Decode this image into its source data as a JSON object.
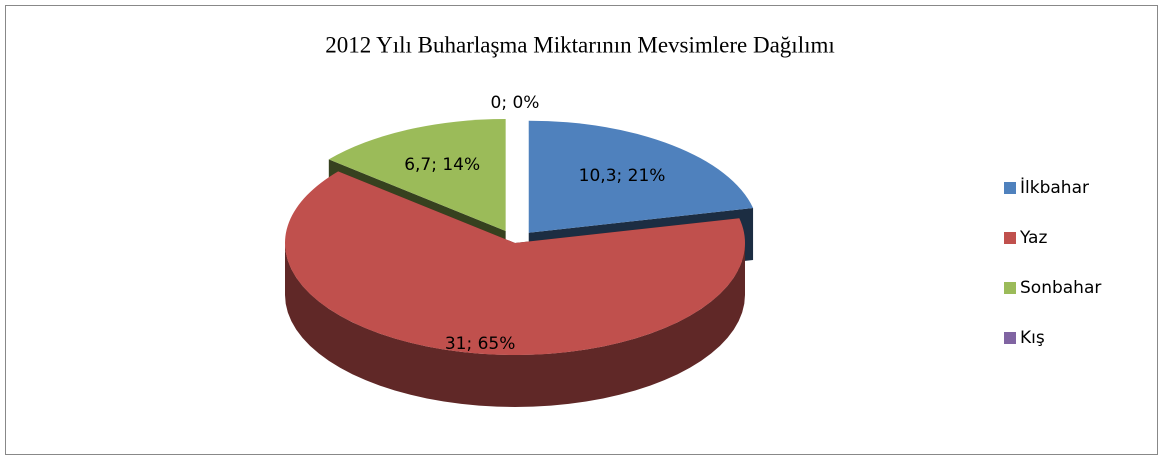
{
  "chart_data": {
    "type": "pie3d",
    "title": "2012 Yılı Buharlaşma Miktarının Mevsimlere Dağılımı",
    "categories": [
      "İlkbahar",
      "Yaz",
      "Sonbahar",
      "Kış"
    ],
    "values": [
      10.3,
      31,
      6.7,
      0
    ],
    "value_labels": [
      "10,3; 21%",
      "31; 65%",
      "6,7; 14%",
      "0; 0%"
    ],
    "colors": [
      "#4f81bd",
      "#c0504d",
      "#9bbb59",
      "#8064a2"
    ],
    "exploded": [
      true,
      false,
      true,
      false
    ],
    "legend": "right"
  }
}
